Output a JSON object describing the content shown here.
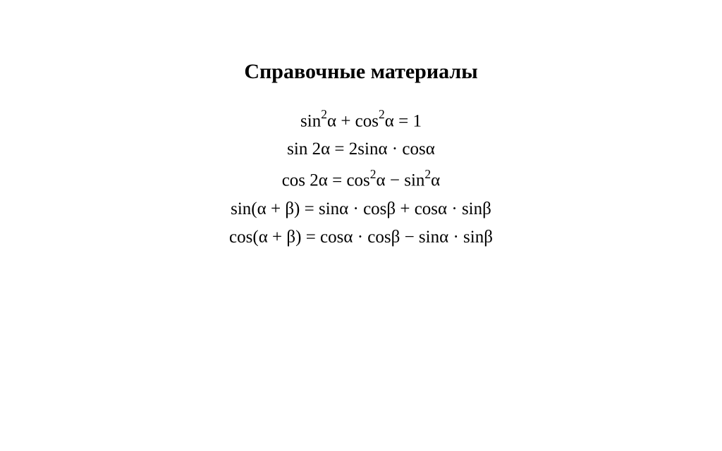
{
  "document": {
    "title": "Справочные материалы",
    "title_fontsize": 30,
    "formula_fontsize": 25,
    "text_color": "#000000",
    "background_color": "#ffffff",
    "formulas": [
      "sin²α + cos²α = 1",
      "sin 2α = 2sinα · cosα",
      "cos 2α = cos²α − sin²α",
      "sin(α + β) = sinα · cosβ + cosα · sinβ",
      "cos(α + β) = cosα · cosβ − sinα · sinβ"
    ],
    "formulas_html": [
      "sin<span class=\"sup\">2</span>α + cos<span class=\"sup\">2</span>α = 1",
      "sin 2α = 2sinα · cosα",
      "cos 2α = cos<span class=\"sup\">2</span>α − sin<span class=\"sup\">2</span>α",
      "sin(α + β) = sinα · cosβ + cosα · sinβ",
      "cos(α + β) = cosα · cosβ − sinα · sinβ"
    ]
  }
}
